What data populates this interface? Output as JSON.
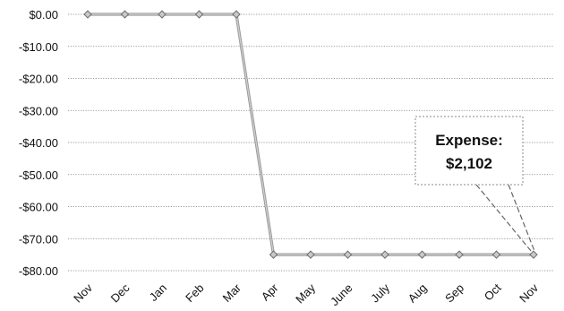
{
  "chart_data": {
    "type": "line",
    "categories": [
      "Nov",
      "Dec",
      "Jan",
      "Feb",
      "Mar",
      "Apr",
      "May",
      "June",
      "July",
      "Aug",
      "Sep",
      "Oct",
      "Nov"
    ],
    "series": [
      {
        "values": [
          0,
          0,
          0,
          0,
          0,
          -75,
          -75,
          -75,
          -75,
          -75,
          -75,
          -75,
          -75
        ]
      }
    ],
    "yticks": [
      "$0.00",
      "-$10.00",
      "-$20.00",
      "-$30.00",
      "-$40.00",
      "-$50.00",
      "-$60.00",
      "-$70.00",
      "-$80.00"
    ],
    "ylim": [
      -80,
      0
    ],
    "grid": true,
    "legend": "none",
    "annotations": [
      {
        "line1": "Expense:",
        "line2": "$2,102",
        "target_index": 12
      }
    ],
    "colors": {
      "line": "#9a9a9a",
      "marker": "#c9c9c9",
      "grid": "#777777"
    }
  }
}
